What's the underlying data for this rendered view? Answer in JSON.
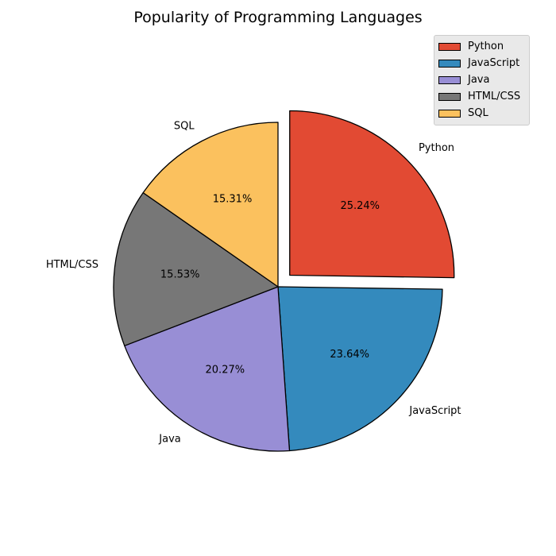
{
  "chart_data": {
    "type": "pie",
    "title": "Popularity of Programming Languages",
    "start_angle_deg": 90,
    "counterclock": false,
    "legend_position": "top-right",
    "slices": [
      {
        "label": "Python",
        "value": 25.24,
        "pct_label": "25.24%",
        "color": "#e24a33",
        "explode": 0.1
      },
      {
        "label": "JavaScript",
        "value": 23.64,
        "pct_label": "23.64%",
        "color": "#348abd",
        "explode": 0
      },
      {
        "label": "Java",
        "value": 20.27,
        "pct_label": "20.27%",
        "color": "#988ed5",
        "explode": 0
      },
      {
        "label": "HTML/CSS",
        "value": 15.53,
        "pct_label": "15.53%",
        "color": "#777777",
        "explode": 0
      },
      {
        "label": "SQL",
        "value": 15.31,
        "pct_label": "15.31%",
        "color": "#fbc15e",
        "explode": 0
      }
    ]
  }
}
